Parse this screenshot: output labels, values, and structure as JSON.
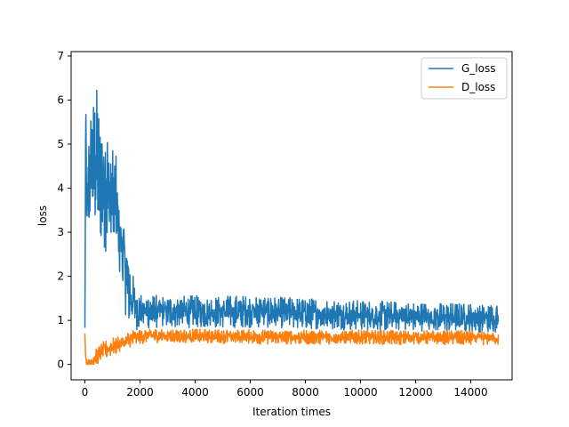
{
  "chart_data": {
    "type": "line",
    "xlabel": "Iteration times",
    "ylabel": "loss",
    "xlim": [
      -500,
      15500
    ],
    "ylim": [
      -0.35,
      7.1
    ],
    "xticks": [
      0,
      2000,
      4000,
      6000,
      8000,
      10000,
      12000,
      14000
    ],
    "yticks": [
      0,
      1,
      2,
      3,
      4,
      5,
      6,
      7
    ],
    "legend_position": "top-right",
    "series": [
      {
        "name": "G_loss",
        "color": "#1f77b4",
        "x": [
          0,
          30,
          60,
          100,
          150,
          200,
          300,
          400,
          450,
          500,
          600,
          700,
          800,
          900,
          1000,
          1100,
          1200,
          1300,
          1400,
          1500,
          1600,
          1700,
          1800,
          1900,
          2000,
          2200,
          2400,
          2600,
          2800,
          3000,
          3500,
          4000,
          4500,
          5000,
          5500,
          6000,
          6500,
          7000,
          7500,
          8000,
          8500,
          9000,
          9500,
          10000,
          10500,
          11000,
          11500,
          12000,
          12500,
          13000,
          13500,
          14000,
          14500,
          15000
        ],
        "values": [
          0.7,
          5.9,
          3.6,
          3.5,
          4.2,
          4.4,
          4.5,
          4.6,
          4.7,
          4.4,
          4.2,
          4.1,
          4.0,
          3.9,
          3.7,
          3.5,
          3.1,
          2.8,
          2.4,
          2.0,
          1.7,
          1.5,
          1.35,
          1.25,
          1.2,
          1.2,
          1.2,
          1.2,
          1.2,
          1.2,
          1.2,
          1.2,
          1.18,
          1.2,
          1.2,
          1.2,
          1.2,
          1.18,
          1.17,
          1.15,
          1.15,
          1.13,
          1.12,
          1.12,
          1.1,
          1.1,
          1.1,
          1.08,
          1.08,
          1.07,
          1.07,
          1.06,
          1.05,
          1.05
        ],
        "spread": [
          0.2,
          0.3,
          0.6,
          0.8,
          0.9,
          1.0,
          1.1,
          1.2,
          1.2,
          1.2,
          1.1,
          1.1,
          1.1,
          1.1,
          1.0,
          1.0,
          1.0,
          0.9,
          0.8,
          0.7,
          0.6,
          0.5,
          0.4,
          0.35,
          0.3,
          0.3,
          0.28,
          0.28,
          0.27,
          0.27,
          0.27,
          0.27,
          0.27,
          0.27,
          0.27,
          0.27,
          0.27,
          0.26,
          0.26,
          0.26,
          0.26,
          0.26,
          0.25,
          0.25,
          0.25,
          0.25,
          0.24,
          0.24,
          0.24,
          0.24,
          0.24,
          0.24,
          0.24,
          0.24
        ]
      },
      {
        "name": "D_loss",
        "color": "#ff7f0e",
        "x": [
          0,
          30,
          60,
          100,
          200,
          300,
          400,
          500,
          600,
          800,
          1000,
          1200,
          1400,
          1600,
          1800,
          2000,
          2200,
          2500,
          3000,
          4000,
          5000,
          6000,
          7000,
          8000,
          9000,
          10000,
          11000,
          12000,
          13000,
          14000,
          15000
        ],
        "values": [
          0.7,
          0.15,
          0.05,
          0.02,
          0.05,
          0.1,
          0.15,
          0.2,
          0.3,
          0.35,
          0.4,
          0.45,
          0.5,
          0.55,
          0.6,
          0.63,
          0.65,
          0.65,
          0.65,
          0.64,
          0.63,
          0.63,
          0.62,
          0.62,
          0.62,
          0.62,
          0.61,
          0.61,
          0.61,
          0.6,
          0.6
        ],
        "spread": [
          0.0,
          0.1,
          0.05,
          0.05,
          0.1,
          0.12,
          0.15,
          0.15,
          0.15,
          0.15,
          0.15,
          0.15,
          0.15,
          0.15,
          0.15,
          0.13,
          0.12,
          0.12,
          0.12,
          0.12,
          0.12,
          0.12,
          0.12,
          0.12,
          0.12,
          0.12,
          0.12,
          0.12,
          0.12,
          0.12,
          0.12
        ]
      }
    ]
  }
}
